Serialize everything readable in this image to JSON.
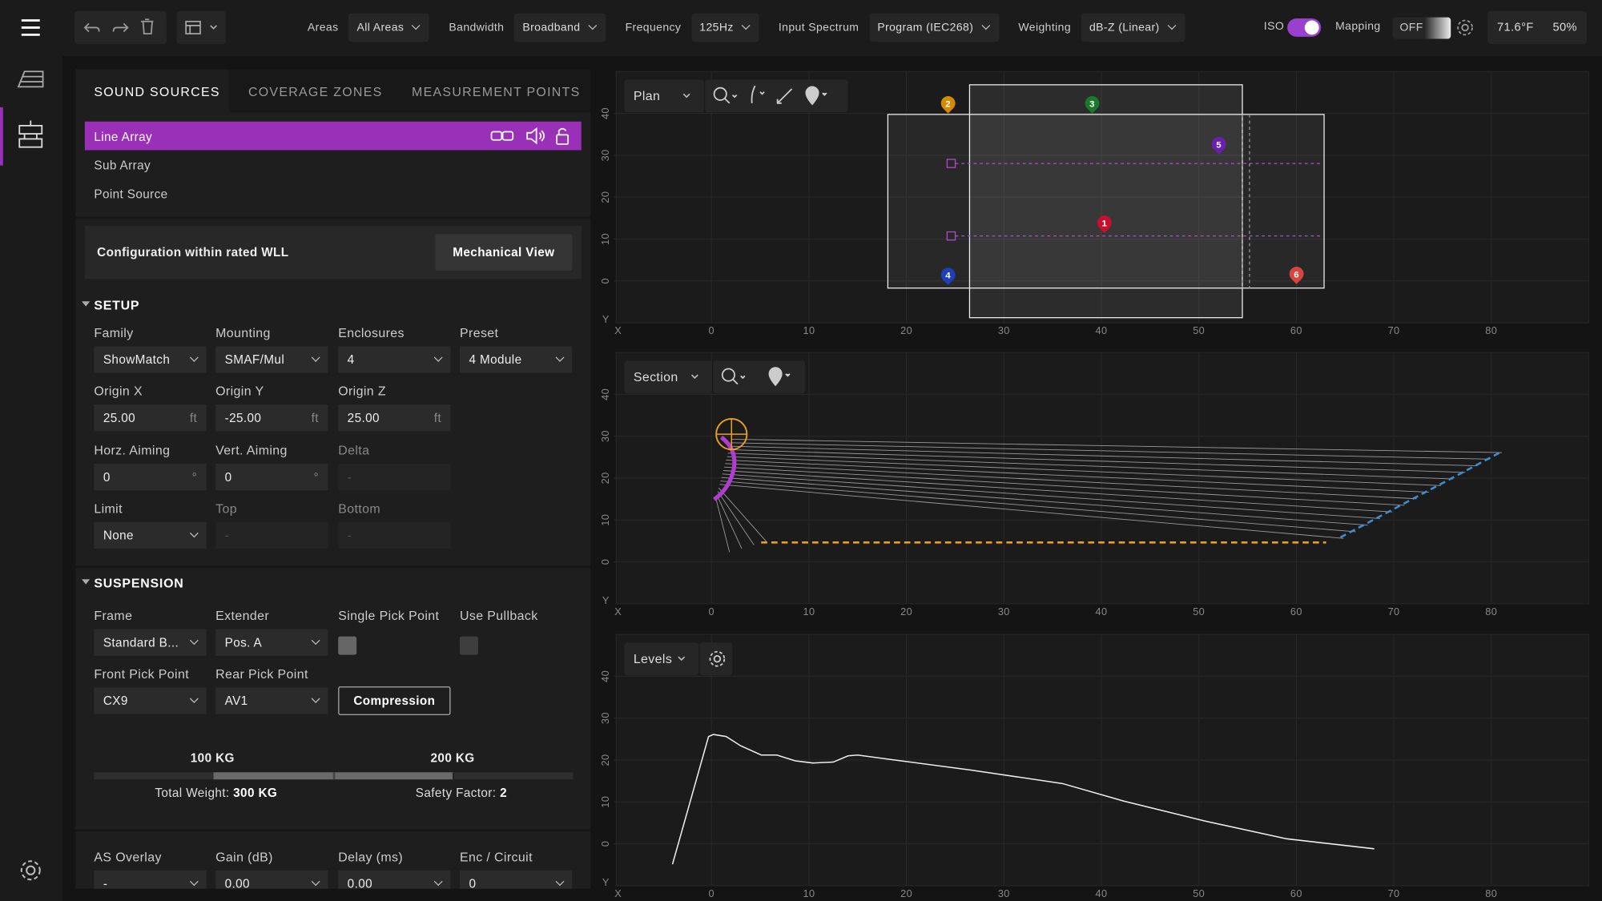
{
  "toolbar": {
    "filters": [
      {
        "label": "Areas",
        "value": "All Areas"
      },
      {
        "label": "Bandwidth",
        "value": "Broadband"
      },
      {
        "label": "Frequency",
        "value": "125Hz"
      },
      {
        "label": "Input Spectrum",
        "value": "Program (IEC268)"
      },
      {
        "label": "Weighting",
        "value": "dB-Z (Linear)"
      }
    ],
    "iso": "ISO",
    "mapping": "Mapping",
    "mapping_state": "OFF",
    "temperature": "71.6°F",
    "humidity": "50%"
  },
  "tabs": [
    "SOUND SOURCES",
    "COVERAGE ZONES",
    "MEASUREMENT POINTS"
  ],
  "sources": [
    "Line Array",
    "Sub Array",
    "Point Source"
  ],
  "status": {
    "message": "Configuration within rated WLL",
    "button": "Mechanical View"
  },
  "setup": {
    "title": "SETUP",
    "rows": [
      [
        {
          "label": "Family",
          "value": "ShowMatch",
          "kind": "select"
        },
        {
          "label": "Mounting",
          "value": "SMAF/Mul",
          "kind": "select"
        },
        {
          "label": "Enclosures",
          "value": "4",
          "kind": "select"
        },
        {
          "label": "Preset",
          "value": "4 Module",
          "kind": "select"
        }
      ],
      [
        {
          "label": "Origin X",
          "value": "25.00",
          "unit": "ft",
          "kind": "input"
        },
        {
          "label": "Origin Y",
          "value": "-25.00",
          "unit": "ft",
          "kind": "input"
        },
        {
          "label": "Origin Z",
          "value": "25.00",
          "unit": "ft",
          "kind": "input"
        }
      ],
      [
        {
          "label": "Horz. Aiming",
          "value": "0",
          "unit": "°",
          "kind": "input"
        },
        {
          "label": "Vert. Aiming",
          "value": "0",
          "unit": "°",
          "kind": "input"
        },
        {
          "label": "Delta",
          "value": "-",
          "kind": "disabled"
        }
      ],
      [
        {
          "label": "Limit",
          "value": "None",
          "kind": "select"
        },
        {
          "label": "Top",
          "value": "-",
          "kind": "disabled"
        },
        {
          "label": "Bottom",
          "value": "-",
          "kind": "disabled"
        }
      ]
    ]
  },
  "suspension": {
    "title": "SUSPENSION",
    "rows": [
      [
        {
          "label": "Frame",
          "value": "Standard B...",
          "kind": "select"
        },
        {
          "label": "Extender",
          "value": "Pos. A",
          "kind": "select"
        },
        {
          "label": "Single Pick Point",
          "kind": "checkbox",
          "checked": true
        },
        {
          "label": "Use Pullback",
          "kind": "checkbox",
          "checked": false
        }
      ],
      [
        {
          "label": "Front Pick Point",
          "value": "CX9",
          "kind": "select"
        },
        {
          "label": "Rear Pick Point",
          "value": "AV1",
          "kind": "select"
        },
        {
          "label": "Compression",
          "kind": "button"
        }
      ]
    ]
  },
  "weight": {
    "min_label": "100 KG",
    "max_label": "200 KG",
    "total_label": "Total Weight:",
    "total": "300 KG",
    "safety_label": "Safety Factor:",
    "safety": "2"
  },
  "output": {
    "rows": [
      [
        {
          "label": "AS Overlay",
          "value": "-",
          "kind": "select"
        },
        {
          "label": "Gain (dB)",
          "value": "0.00",
          "kind": "select"
        },
        {
          "label": "Delay (ms)",
          "value": "0.00",
          "kind": "select"
        },
        {
          "label": "Enc / Circuit",
          "value": "0",
          "kind": "select"
        }
      ]
    ]
  },
  "plots": [
    {
      "view": "Plan",
      "xlim": [
        -10,
        90
      ],
      "ylim": [
        -10,
        50
      ],
      "xticks": [
        0,
        10,
        20,
        30,
        40,
        50,
        60,
        70,
        80
      ],
      "yticks": [
        40,
        30,
        20,
        10,
        0
      ],
      "x_label": "X",
      "y_label": "Y",
      "grid": true,
      "markers": [
        "1",
        "2",
        "3",
        "4",
        "5",
        "6"
      ]
    },
    {
      "view": "Section",
      "xlim": [
        -10,
        90
      ],
      "ylim": [
        -10,
        50
      ],
      "xticks": [
        0,
        10,
        20,
        30,
        40,
        50,
        60,
        70,
        80
      ],
      "yticks": [
        40,
        30,
        20,
        10,
        0
      ],
      "x_label": "X",
      "y_label": "Y",
      "grid": true
    },
    {
      "view": "Levels",
      "xlim": [
        -10,
        90
      ],
      "ylim": [
        -10,
        50
      ],
      "xticks": [
        0,
        10,
        20,
        30,
        40,
        50,
        60,
        70,
        80
      ],
      "yticks": [
        40,
        30,
        20,
        10,
        0
      ],
      "x_label": "X",
      "y_label": "Y",
      "grid": true,
      "curve": {
        "x": [
          -4,
          -0.3,
          0.2,
          1.5,
          3,
          5.1,
          6.7,
          8.6,
          10.4,
          12.5,
          14,
          15,
          18.2,
          26.6,
          36,
          42.3,
          50.7,
          59,
          68
        ],
        "y": [
          -4.9,
          25.6,
          26.1,
          25.6,
          23.4,
          21.2,
          21.2,
          19.8,
          19.3,
          19.5,
          21,
          21.2,
          20.2,
          17.6,
          14.4,
          10.2,
          5.4,
          1.2,
          -1.2
        ]
      }
    }
  ]
}
